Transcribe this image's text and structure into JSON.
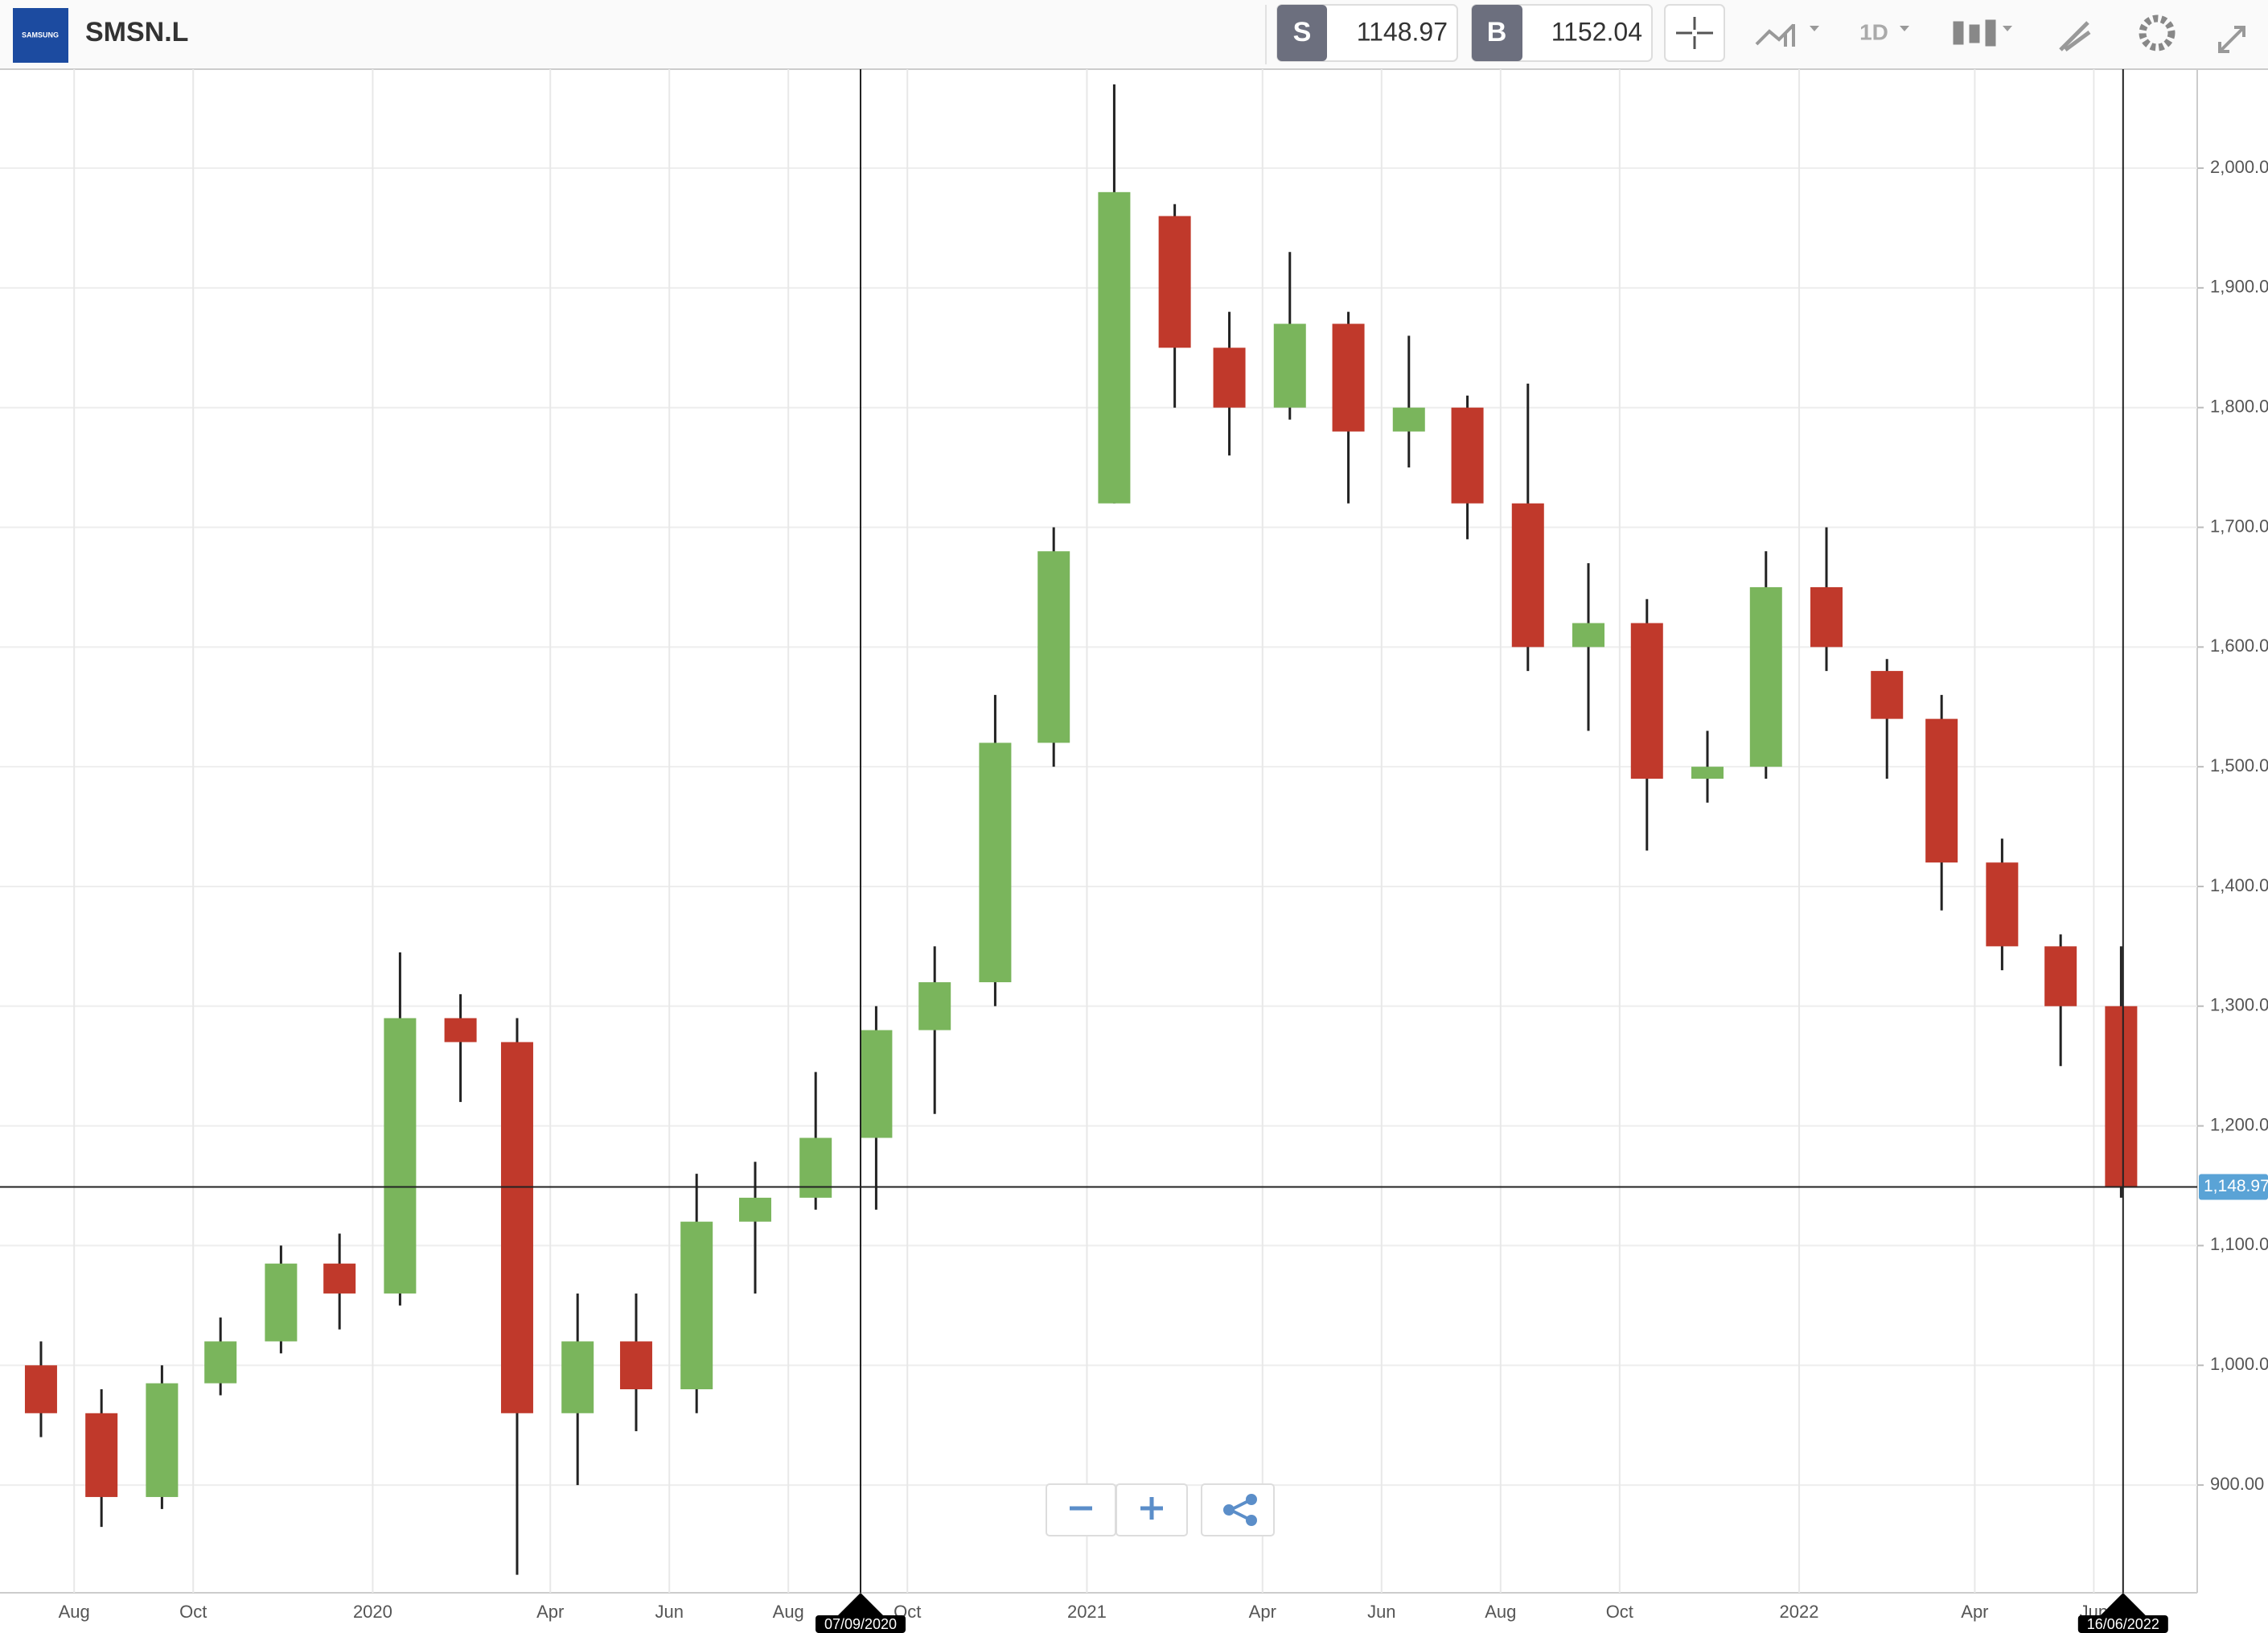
{
  "toolbar": {
    "logo": "SAMSUNG",
    "symbol": "SMSN.L",
    "sell_label": "S",
    "sell_price": "1148.97",
    "buy_label": "B",
    "buy_price": "1152.04",
    "interval": "1D"
  },
  "chart_data": {
    "type": "candlestick",
    "x": [
      "15/07/2019",
      "15/08/2019",
      "15/09/2019",
      "15/10/2019",
      "15/11/2019",
      "15/12/2019",
      "15/01/2020",
      "15/02/2020",
      "15/03/2020",
      "15/04/2020",
      "15/05/2020",
      "15/06/2020",
      "15/07/2020",
      "15/08/2020",
      "15/09/2020",
      "15/10/2020",
      "15/11/2020",
      "15/12/2020",
      "15/01/2021",
      "15/02/2021",
      "15/03/2021",
      "15/04/2021",
      "15/05/2021",
      "15/06/2021",
      "15/07/2021",
      "15/08/2021",
      "15/09/2021",
      "15/10/2021",
      "15/11/2021",
      "15/12/2021",
      "15/01/2022",
      "15/02/2022",
      "15/03/2022",
      "15/04/2022",
      "15/05/2022",
      "15/06/2022"
    ],
    "open": [
      1000,
      960,
      890,
      985,
      1020,
      1085,
      1060,
      1290,
      1270,
      960,
      1020,
      980,
      1120,
      1140,
      1190,
      1280,
      1320,
      1520,
      1720,
      1960,
      1850,
      1800,
      1870,
      1780,
      1800,
      1720,
      1600,
      1620,
      1490,
      1500,
      1650,
      1580,
      1540,
      1420,
      1350,
      1300
    ],
    "high": [
      1020,
      980,
      1000,
      1040,
      1100,
      1110,
      1345,
      1310,
      1290,
      1060,
      1060,
      1160,
      1170,
      1245,
      1300,
      1350,
      1560,
      1700,
      2070,
      1970,
      1880,
      1930,
      1880,
      1860,
      1810,
      1820,
      1670,
      1640,
      1530,
      1680,
      1700,
      1590,
      1560,
      1440,
      1360,
      1350
    ],
    "low": [
      940,
      865,
      880,
      975,
      1010,
      1030,
      1050,
      1220,
      825,
      900,
      945,
      960,
      1060,
      1130,
      1130,
      1210,
      1300,
      1500,
      1720,
      1800,
      1760,
      1790,
      1720,
      1750,
      1690,
      1580,
      1530,
      1430,
      1470,
      1490,
      1580,
      1490,
      1380,
      1330,
      1250,
      1140
    ],
    "close": [
      960,
      890,
      985,
      1020,
      1085,
      1060,
      1290,
      1270,
      960,
      1020,
      980,
      1120,
      1140,
      1190,
      1280,
      1320,
      1520,
      1680,
      1980,
      1850,
      1800,
      1870,
      1780,
      1800,
      1720,
      1600,
      1620,
      1490,
      1500,
      1650,
      1600,
      1540,
      1420,
      1350,
      1300,
      1148.97
    ],
    "up_color": "#7ab55c",
    "down_color": "#c0392b",
    "xlim": [
      "24/06/2019",
      "24/07/2022"
    ],
    "xticks": [
      {
        "value": "01/08/2019",
        "label": "Aug"
      },
      {
        "value": "01/10/2019",
        "label": "Oct"
      },
      {
        "value": "01/01/2020",
        "label": "2020"
      },
      {
        "value": "01/04/2020",
        "label": "Apr"
      },
      {
        "value": "01/06/2020",
        "label": "Jun"
      },
      {
        "value": "01/08/2020",
        "label": "Aug"
      },
      {
        "value": "01/10/2020",
        "label": "Oct"
      },
      {
        "value": "01/01/2021",
        "label": "2021"
      },
      {
        "value": "01/04/2021",
        "label": "Apr"
      },
      {
        "value": "01/06/2021",
        "label": "Jun"
      },
      {
        "value": "01/08/2021",
        "label": "Aug"
      },
      {
        "value": "01/10/2021",
        "label": "Oct"
      },
      {
        "value": "01/01/2022",
        "label": "2022"
      },
      {
        "value": "01/04/2022",
        "label": "Apr"
      },
      {
        "value": "01/06/2022",
        "label": "Jun"
      }
    ],
    "ylim": [
      810,
      2080
    ],
    "yticks": [
      {
        "value": 900,
        "label": "900.00"
      },
      {
        "value": 1000,
        "label": "1,000.00"
      },
      {
        "value": 1100,
        "label": "1,100.00"
      },
      {
        "value": 1200,
        "label": "1,200.00"
      },
      {
        "value": 1300,
        "label": "1,300.00"
      },
      {
        "value": 1400,
        "label": "1,400.00"
      },
      {
        "value": 1500,
        "label": "1,500.00"
      },
      {
        "value": 1600,
        "label": "1,600.00"
      },
      {
        "value": 1700,
        "label": "1,700.00"
      },
      {
        "value": 1800,
        "label": "1,800.00"
      },
      {
        "value": 1900,
        "label": "1,900.00"
      },
      {
        "value": 2000,
        "label": "2,000.00"
      }
    ],
    "grid": true,
    "crosshair": {
      "x": "07/09/2020",
      "y": {
        "value": 1148.97,
        "label": "1,148.97"
      }
    },
    "last_date": "16/06/2022"
  }
}
